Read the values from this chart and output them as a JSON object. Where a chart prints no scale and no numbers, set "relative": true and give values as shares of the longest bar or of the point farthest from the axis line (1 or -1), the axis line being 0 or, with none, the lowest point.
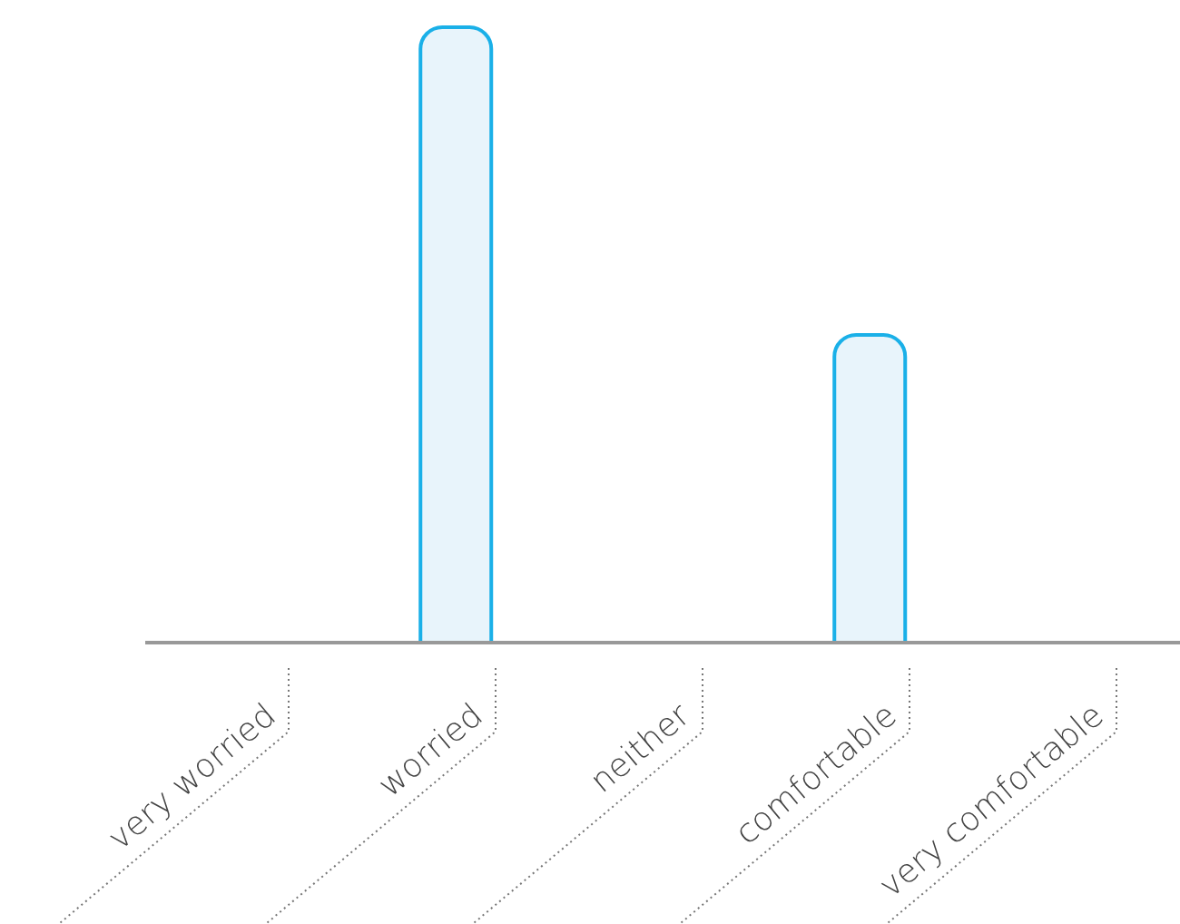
{
  "chart_data": {
    "type": "bar",
    "categories": [
      "very worried",
      "worried",
      "neither",
      "comfortable",
      "very comfortable"
    ],
    "values": [
      0,
      1,
      0,
      0.5,
      0
    ],
    "color": "#1ab0e8",
    "relative": true,
    "grid": false,
    "legend": false
  }
}
